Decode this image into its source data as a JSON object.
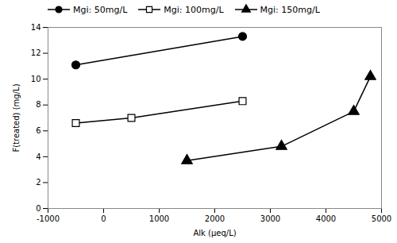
{
  "chart_data": {
    "type": "line",
    "xlabel": "Alk (μeq/L)",
    "ylabel": "F(treated) (mg/L)",
    "xlim": [
      -1000,
      5000
    ],
    "ylim": [
      0,
      14
    ],
    "xticks": [
      -1000,
      0,
      1000,
      2000,
      3000,
      4000,
      5000
    ],
    "yticks": [
      0,
      2,
      4,
      6,
      8,
      10,
      12,
      14
    ],
    "legend": "upper left",
    "series": [
      {
        "name": "Mgi: 50mg/L",
        "color": "black",
        "marker": "circle",
        "x": [
          -500,
          2500
        ],
        "values": [
          11.1,
          13.3
        ]
      },
      {
        "name": "Mgi: 100mg/L",
        "color": "black",
        "marker": "square-open",
        "x": [
          -500,
          500,
          2500
        ],
        "values": [
          6.6,
          7.0,
          8.3
        ]
      },
      {
        "name": "Mgi: 150mg/L",
        "color": "black",
        "marker": "triangle",
        "x": [
          1500,
          3200,
          4500,
          4800
        ],
        "values": [
          3.7,
          4.8,
          7.5,
          10.2
        ]
      }
    ]
  }
}
